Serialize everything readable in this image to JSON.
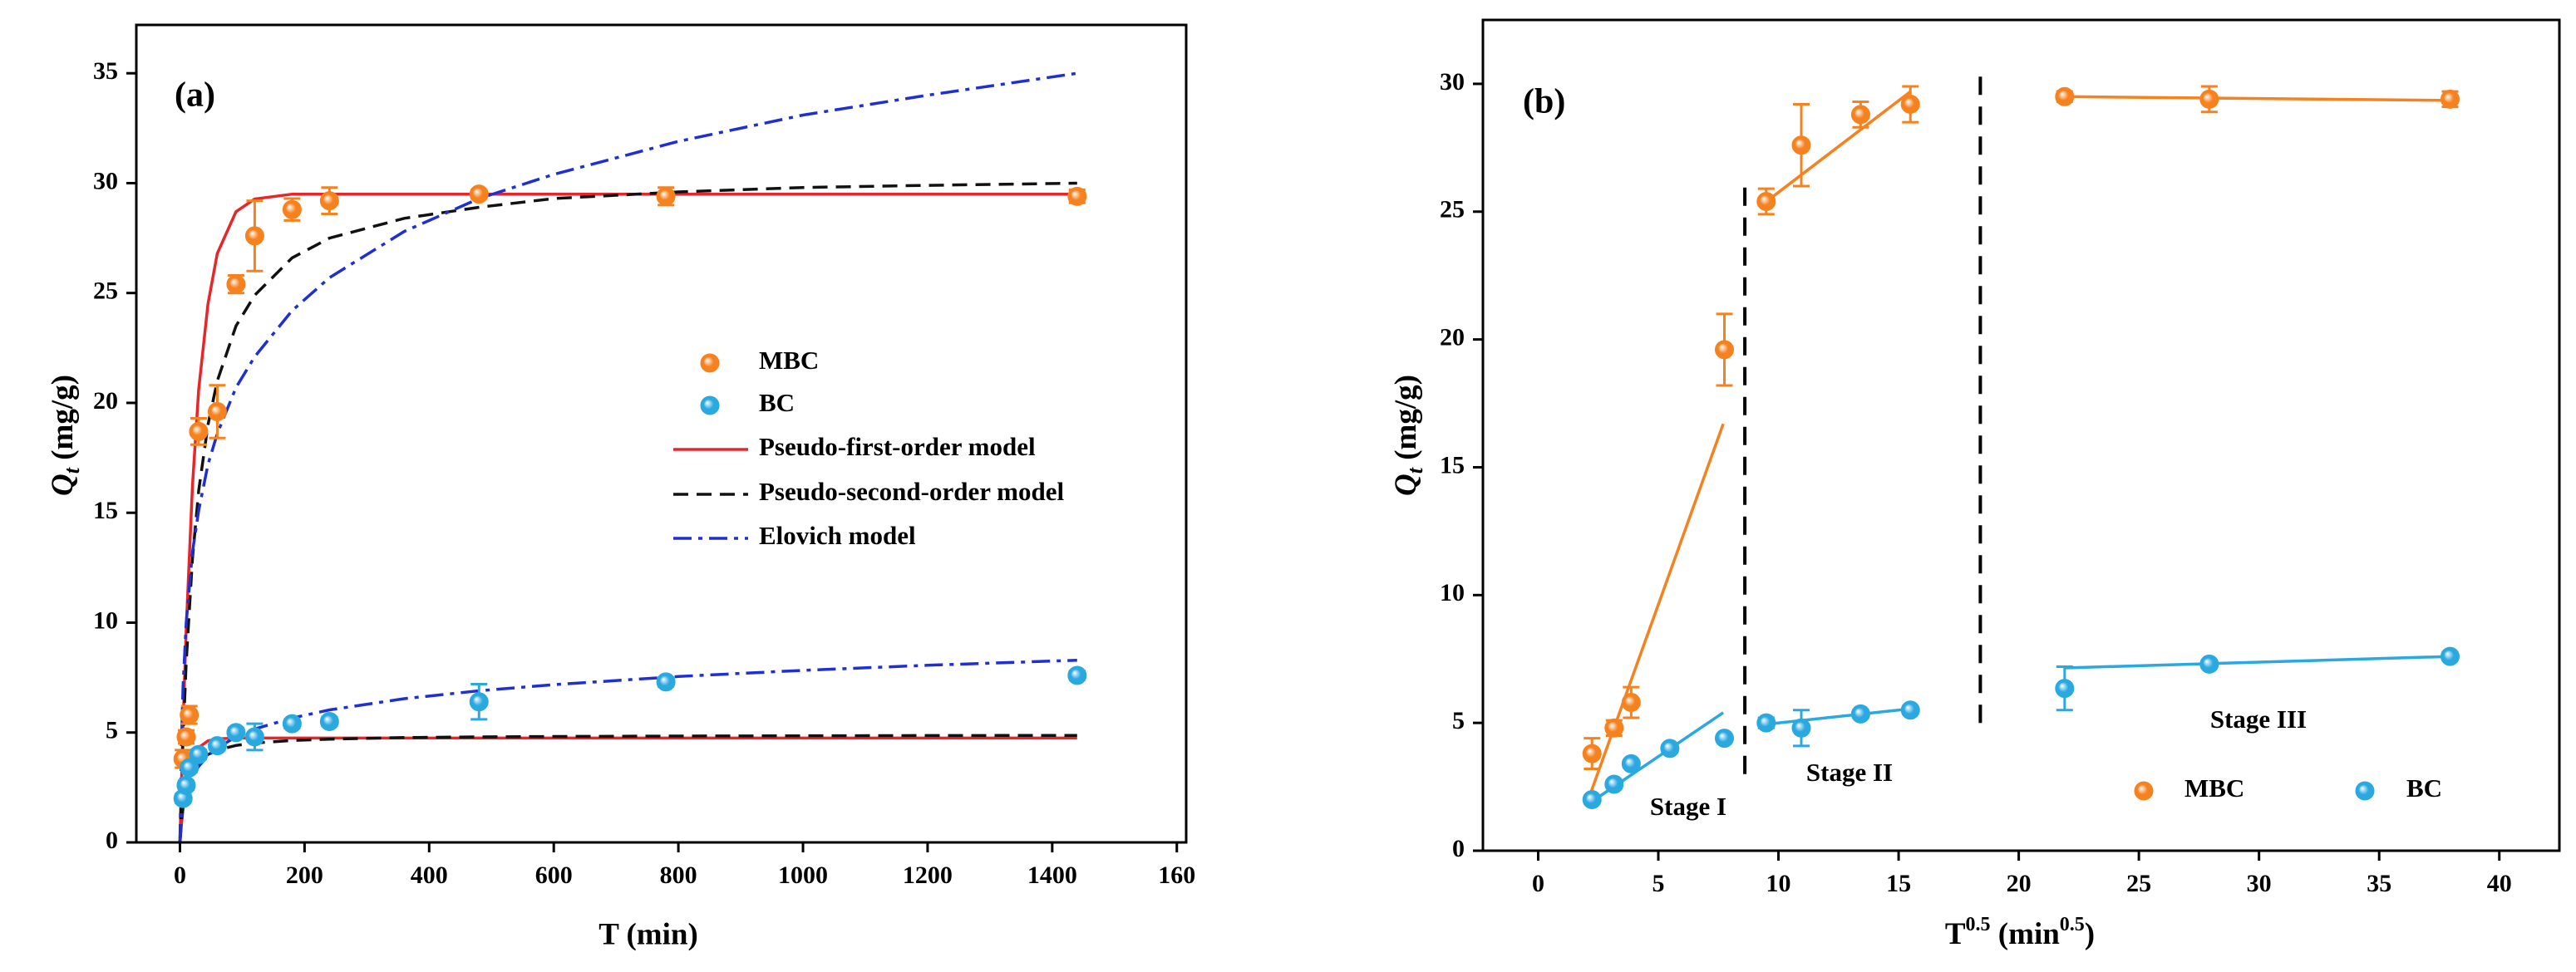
{
  "chart_data": [
    {
      "type": "scatter",
      "panel_label": "(a)",
      "xlabel": "T (min)",
      "ylabel_parts": [
        {
          "text": "Q",
          "italic": true
        },
        {
          "text": "t",
          "italic": true,
          "sub": true
        },
        {
          "text": " (mg/g)"
        }
      ],
      "xlim": [
        -70,
        1615
      ],
      "ylim": [
        0,
        37.2
      ],
      "xticks": [
        0,
        200,
        400,
        600,
        800,
        1000,
        1200,
        1400,
        {
          "value": 1600,
          "label": "160"
        }
      ],
      "yticks": [
        0,
        5,
        10,
        15,
        20,
        25,
        30,
        35
      ],
      "series": [
        {
          "name": "MBC",
          "color": "#f5821f",
          "x": [
            5,
            10,
            15,
            30,
            60,
            90,
            120,
            180,
            240,
            480,
            780,
            1440
          ],
          "values": [
            3.8,
            4.8,
            5.8,
            18.7,
            19.6,
            25.4,
            27.6,
            28.8,
            29.2,
            29.5,
            29.4,
            29.4
          ],
          "errors": [
            0.4,
            0.3,
            0.4,
            0.6,
            1.2,
            0.4,
            1.6,
            0.5,
            0.6,
            0.2,
            0.4,
            0.3
          ]
        },
        {
          "name": "BC",
          "color": "#2aa8e0",
          "x": [
            5,
            10,
            15,
            30,
            60,
            90,
            120,
            180,
            240,
            480,
            780,
            1440
          ],
          "values": [
            2.0,
            2.6,
            3.4,
            4.0,
            4.4,
            5.0,
            4.8,
            5.4,
            5.5,
            6.4,
            7.3,
            7.6
          ],
          "errors": [
            0.2,
            0.2,
            0.2,
            0.2,
            0.2,
            0.2,
            0.6,
            0.2,
            0.2,
            0.8,
            0.2,
            0.2
          ]
        }
      ],
      "model_x": [
        0,
        2,
        5,
        10,
        20,
        30,
        45,
        60,
        90,
        120,
        180,
        240,
        360,
        480,
        600,
        800,
        1000,
        1200,
        1440
      ],
      "models": [
        {
          "name": "Pseudo-first-order model",
          "color": "#e8262a",
          "dash": "solid",
          "curves": [
            [
              0,
              2.27,
              5.35,
              9.72,
              16.2,
              20.6,
              24.5,
              26.8,
              28.7,
              29.28,
              29.5,
              29.5,
              29.5,
              29.5,
              29.5,
              29.5,
              29.5,
              29.5,
              29.5
            ],
            [
              0,
              0.7,
              1.57,
              2.62,
              3.62,
              4.32,
              4.62,
              4.71,
              4.75,
              4.75,
              4.75,
              4.75,
              4.75,
              4.75,
              4.75,
              4.75,
              4.75,
              4.75,
              4.75
            ]
          ]
        },
        {
          "name": "Pseudo-second-order model",
          "color": "#111111",
          "dash": "dashed",
          "curves": [
            [
              0,
              2.08,
              4.72,
              8.18,
              12.9,
              16.0,
              19.0,
              21.0,
              23.5,
              24.9,
              26.6,
              27.5,
              28.4,
              28.9,
              29.3,
              29.6,
              29.8,
              29.9,
              30.0
            ],
            [
              0,
              0.82,
              1.63,
              2.45,
              3.27,
              3.68,
              4.0,
              4.2,
              4.41,
              4.52,
              4.64,
              4.7,
              4.77,
              4.8,
              4.82,
              4.84,
              4.85,
              4.86,
              4.87
            ]
          ]
        },
        {
          "name": "Elovich model",
          "color": "#1f2fd1",
          "dash": "dashdot",
          "curves": [
            [
              0,
              4.0,
              7.1,
              10.0,
              13.2,
              15.1,
              17.2,
              18.6,
              20.7,
              22.1,
              24.2,
              25.7,
              27.8,
              29.3,
              30.4,
              31.9,
              33.1,
              34.0,
              35.0
            ],
            [
              0,
              0.85,
              1.54,
              2.22,
              2.99,
              3.46,
              3.95,
              4.3,
              4.8,
              5.16,
              5.66,
              6.03,
              6.54,
              6.9,
              7.18,
              7.55,
              7.83,
              8.06,
              8.29
            ]
          ]
        }
      ]
    },
    {
      "type": "scatter",
      "panel_label": "(b)",
      "xlabel_parts": [
        {
          "text": "T"
        },
        {
          "text": "0.5",
          "sup": true
        },
        {
          "text": " (min"
        },
        {
          "text": "0.5",
          "sup": true
        },
        {
          "text": ")"
        }
      ],
      "ylabel_parts": [
        {
          "text": "Q",
          "italic": true
        },
        {
          "text": "t",
          "italic": true,
          "sub": true
        },
        {
          "text": " (mg/g)"
        }
      ],
      "xlim": [
        -2.3,
        42.5
      ],
      "ylim": [
        0,
        32.5
      ],
      "xticks": [
        0,
        5,
        10,
        15,
        20,
        25,
        30,
        35,
        40
      ],
      "yticks": [
        0,
        5,
        10,
        15,
        20,
        25,
        30
      ],
      "series": [
        {
          "name": "MBC",
          "color": "#f5821f",
          "x": [
            2.24,
            3.16,
            3.87,
            7.75,
            9.49,
            10.95,
            13.42,
            15.49,
            21.91,
            27.93,
            37.95
          ],
          "values": [
            3.8,
            4.8,
            5.8,
            19.6,
            25.4,
            27.6,
            28.8,
            29.2,
            29.5,
            29.4,
            29.4
          ],
          "errors": [
            0.6,
            0.3,
            0.6,
            1.4,
            0.5,
            1.6,
            0.5,
            0.7,
            0.2,
            0.5,
            0.3
          ],
          "fits": [
            {
              "x": [
                2.2,
                7.7
              ],
              "values": [
                2.3,
                16.7
              ]
            },
            {
              "x": [
                9.5,
                15.5
              ],
              "values": [
                25.4,
                29.7
              ]
            },
            {
              "x": [
                21.9,
                37.9
              ],
              "values": [
                29.5,
                29.35
              ]
            }
          ]
        },
        {
          "name": "BC",
          "color": "#2aa8e0",
          "x": [
            2.24,
            3.16,
            3.87,
            5.48,
            7.75,
            9.49,
            10.95,
            13.42,
            15.49,
            21.91,
            27.93,
            37.95
          ],
          "values": [
            2.0,
            2.6,
            3.4,
            4.0,
            4.4,
            5.0,
            4.8,
            5.35,
            5.5,
            6.35,
            7.3,
            7.6
          ],
          "errors": [
            0.15,
            0.15,
            0.15,
            0.15,
            0.15,
            0.2,
            0.7,
            0.15,
            0.15,
            0.85,
            0.15,
            0.15
          ],
          "fits": [
            {
              "x": [
                2.2,
                7.7
              ],
              "values": [
                1.9,
                5.4
              ]
            },
            {
              "x": [
                9.5,
                15.5
              ],
              "values": [
                4.95,
                5.55
              ]
            },
            {
              "x": [
                21.9,
                37.9
              ],
              "values": [
                7.15,
                7.6
              ]
            }
          ]
        }
      ],
      "dividers": [
        {
          "x": [
            8.6,
            8.6
          ],
          "values": [
            3,
            26.2
          ]
        },
        {
          "x": [
            18.4,
            18.4
          ],
          "values": [
            5,
            30.5
          ]
        }
      ],
      "annotations": [
        "Stage I",
        "Stage II",
        "Stage III"
      ]
    }
  ]
}
